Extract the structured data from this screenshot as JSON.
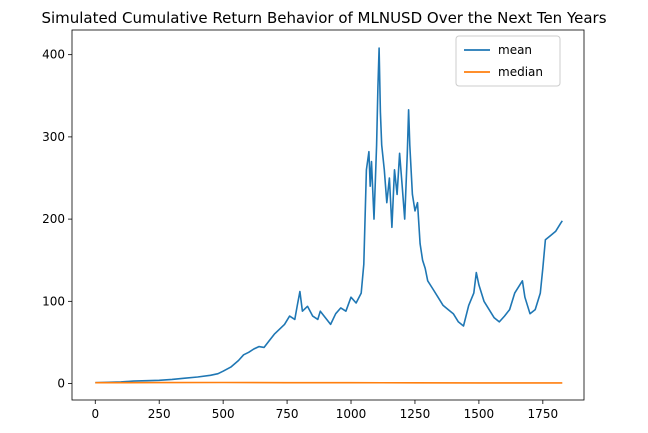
{
  "chart_data": {
    "type": "line",
    "title": "Simulated Cumulative Return Behavior of MLNUSD Over the Next Ten Years",
    "xlabel": "",
    "ylabel": "",
    "xlim": [
      -91,
      1911
    ],
    "ylim": [
      -20,
      430
    ],
    "x_ticks": [
      0,
      250,
      500,
      750,
      1000,
      1250,
      1500,
      1750
    ],
    "y_ticks": [
      0,
      100,
      200,
      300,
      400
    ],
    "grid": false,
    "legend_position": "top-right",
    "series": [
      {
        "name": "mean",
        "color": "#1f77b4",
        "points": [
          [
            0,
            1
          ],
          [
            50,
            1.5
          ],
          [
            100,
            2
          ],
          [
            150,
            3
          ],
          [
            200,
            3.5
          ],
          [
            250,
            4
          ],
          [
            300,
            5
          ],
          [
            350,
            6.5
          ],
          [
            400,
            8
          ],
          [
            450,
            10
          ],
          [
            480,
            12
          ],
          [
            500,
            15
          ],
          [
            530,
            20
          ],
          [
            560,
            28
          ],
          [
            580,
            35
          ],
          [
            600,
            38
          ],
          [
            620,
            42
          ],
          [
            640,
            45
          ],
          [
            660,
            44
          ],
          [
            680,
            52
          ],
          [
            700,
            60
          ],
          [
            720,
            66
          ],
          [
            740,
            72
          ],
          [
            760,
            82
          ],
          [
            780,
            78
          ],
          [
            790,
            95
          ],
          [
            800,
            112
          ],
          [
            810,
            88
          ],
          [
            830,
            94
          ],
          [
            850,
            82
          ],
          [
            870,
            78
          ],
          [
            880,
            88
          ],
          [
            900,
            80
          ],
          [
            920,
            72
          ],
          [
            940,
            85
          ],
          [
            960,
            92
          ],
          [
            980,
            88
          ],
          [
            1000,
            105
          ],
          [
            1020,
            98
          ],
          [
            1040,
            110
          ],
          [
            1050,
            145
          ],
          [
            1060,
            260
          ],
          [
            1070,
            282
          ],
          [
            1075,
            240
          ],
          [
            1080,
            270
          ],
          [
            1090,
            200
          ],
          [
            1100,
            290
          ],
          [
            1105,
            360
          ],
          [
            1110,
            408
          ],
          [
            1115,
            330
          ],
          [
            1120,
            290
          ],
          [
            1130,
            260
          ],
          [
            1140,
            220
          ],
          [
            1150,
            250
          ],
          [
            1160,
            190
          ],
          [
            1170,
            260
          ],
          [
            1180,
            230
          ],
          [
            1190,
            280
          ],
          [
            1200,
            240
          ],
          [
            1210,
            200
          ],
          [
            1220,
            280
          ],
          [
            1225,
            333
          ],
          [
            1230,
            290
          ],
          [
            1240,
            230
          ],
          [
            1250,
            210
          ],
          [
            1260,
            220
          ],
          [
            1270,
            170
          ],
          [
            1280,
            150
          ],
          [
            1290,
            140
          ],
          [
            1300,
            125
          ],
          [
            1320,
            115
          ],
          [
            1340,
            105
          ],
          [
            1360,
            95
          ],
          [
            1380,
            90
          ],
          [
            1400,
            85
          ],
          [
            1420,
            75
          ],
          [
            1440,
            70
          ],
          [
            1460,
            95
          ],
          [
            1480,
            110
          ],
          [
            1490,
            135
          ],
          [
            1500,
            120
          ],
          [
            1520,
            100
          ],
          [
            1540,
            90
          ],
          [
            1560,
            80
          ],
          [
            1580,
            75
          ],
          [
            1600,
            82
          ],
          [
            1620,
            90
          ],
          [
            1640,
            110
          ],
          [
            1660,
            120
          ],
          [
            1670,
            125
          ],
          [
            1680,
            105
          ],
          [
            1700,
            85
          ],
          [
            1720,
            90
          ],
          [
            1740,
            110
          ],
          [
            1750,
            140
          ],
          [
            1760,
            175
          ],
          [
            1780,
            180
          ],
          [
            1800,
            185
          ],
          [
            1820,
            195
          ],
          [
            1826,
            198
          ]
        ]
      },
      {
        "name": "median",
        "color": "#ff7f0e",
        "points": [
          [
            0,
            1
          ],
          [
            250,
            1.2
          ],
          [
            500,
            1.3
          ],
          [
            750,
            1.1
          ],
          [
            1000,
            1.0
          ],
          [
            1250,
            0.9
          ],
          [
            1500,
            0.8
          ],
          [
            1750,
            0.8
          ],
          [
            1826,
            0.8
          ]
        ]
      }
    ]
  }
}
